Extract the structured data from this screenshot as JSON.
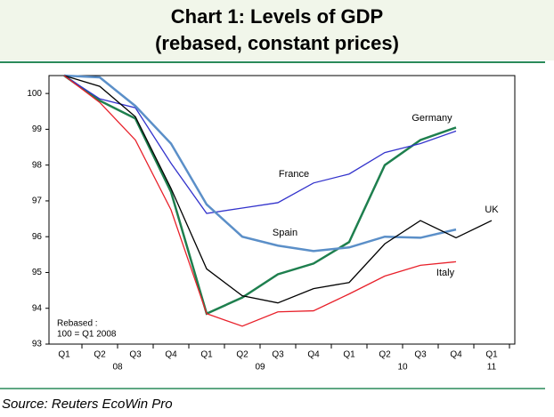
{
  "chart_data": {
    "type": "line",
    "title": "Chart 1: Levels of GDP",
    "subtitle": "(rebased, constant prices)",
    "note": [
      "Rebased :",
      "100 = Q1 2008"
    ],
    "source": "Source: Reuters EcoWin Pro",
    "categories": [
      "Q1",
      "Q2",
      "Q3",
      "Q4",
      "Q1",
      "Q2",
      "Q3",
      "Q4",
      "Q1",
      "Q2",
      "Q3",
      "Q4",
      "Q1"
    ],
    "year_labels": [
      "08",
      "09",
      "10",
      "11"
    ],
    "ylim": [
      93,
      100.5
    ],
    "yticks": [
      93,
      94,
      95,
      96,
      97,
      98,
      99,
      100
    ],
    "series": [
      {
        "name": "Germany",
        "color": "#1e7f4e",
        "values": [
          100.5,
          99.8,
          99.3,
          97.25,
          93.85,
          94.3,
          94.95,
          95.25,
          95.85,
          98.0,
          98.7,
          99.05,
          null
        ]
      },
      {
        "name": "France",
        "color": "#3333cc",
        "values": [
          100.5,
          99.85,
          99.6,
          98.05,
          96.65,
          96.8,
          96.95,
          97.5,
          97.75,
          98.35,
          98.6,
          98.95,
          null
        ]
      },
      {
        "name": "Spain",
        "color": "#5b8fc8",
        "values": [
          100.5,
          100.45,
          99.65,
          98.6,
          96.9,
          96.0,
          95.75,
          95.6,
          95.7,
          96.0,
          95.97,
          96.2,
          null
        ]
      },
      {
        "name": "UK",
        "color": "#000000",
        "values": [
          100.5,
          100.2,
          99.35,
          97.35,
          95.1,
          94.35,
          94.15,
          94.55,
          94.72,
          95.8,
          96.45,
          95.97,
          96.45
        ]
      },
      {
        "name": "Italy",
        "color": "#e8202a",
        "values": [
          100.5,
          99.75,
          98.7,
          96.75,
          93.85,
          93.5,
          93.9,
          93.93,
          94.4,
          94.9,
          95.2,
          95.3,
          null
        ]
      }
    ]
  }
}
